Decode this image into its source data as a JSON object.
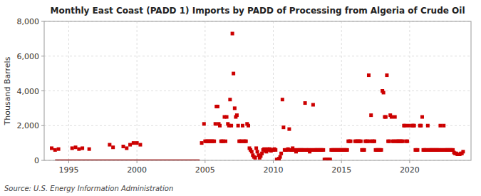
{
  "chart_data": {
    "type": "scatter",
    "title": "Monthly East Coast (PADD 1) Imports by PADD of Processing from Algeria of Crude Oil",
    "y_label": "Thousand Barrels",
    "annotations": [
      "Source: U.S. Energy Information Administration"
    ],
    "xlim": [
      1993.2,
      2024.5
    ],
    "xticks": [
      1995,
      2000,
      2005,
      2010,
      2015,
      2020
    ],
    "ylim": [
      0,
      8000
    ],
    "yticks": [
      0,
      {
        "value": 2000,
        "label": "2,000"
      },
      {
        "value": 4000,
        "label": "4,000"
      },
      {
        "value": 6000,
        "label": "6,000"
      },
      {
        "value": 8000,
        "label": "8,000"
      }
    ],
    "grid": true,
    "series": [
      {
        "type": "line",
        "color": "#8b0000",
        "x": [
          1994.0,
          2004.6
        ],
        "values": [
          0,
          0
        ]
      },
      {
        "type": "scatter",
        "color": "#cc0000",
        "marker": "square",
        "x": [
          1993.75,
          1994.0,
          1994.25,
          1995.25,
          1995.5,
          1995.75,
          1996.0,
          1996.5,
          1998.0,
          1998.25,
          1999.0,
          1999.25,
          1999.5,
          1999.75,
          2000.0,
          2000.25,
          2004.75,
          2004.92,
          2005.0,
          2005.08,
          2005.17,
          2005.25,
          2005.33,
          2005.42,
          2005.5,
          2005.58,
          2005.67,
          2005.75,
          2005.83,
          2005.92,
          2006.0,
          2006.08,
          2006.17,
          2006.25,
          2006.33,
          2006.42,
          2006.5,
          2006.58,
          2006.67,
          2006.75,
          2006.83,
          2006.92,
          2007.0,
          2007.08,
          2007.17,
          2007.25,
          2007.33,
          2007.42,
          2007.5,
          2007.58,
          2007.67,
          2007.75,
          2007.83,
          2007.92,
          2008.0,
          2008.08,
          2008.17,
          2008.25,
          2008.33,
          2008.42,
          2008.5,
          2008.58,
          2008.67,
          2008.75,
          2008.83,
          2008.92,
          2009.0,
          2009.08,
          2009.17,
          2009.25,
          2009.33,
          2009.42,
          2009.5,
          2009.58,
          2009.67,
          2009.75,
          2009.83,
          2009.92,
          2010.0,
          2010.08,
          2010.17,
          2010.25,
          2010.33,
          2010.42,
          2010.5,
          2010.58,
          2010.67,
          2010.75,
          2010.83,
          2010.92,
          2011.0,
          2011.08,
          2011.17,
          2011.25,
          2011.33,
          2011.42,
          2011.5,
          2011.58,
          2011.67,
          2011.75,
          2011.83,
          2011.92,
          2012.0,
          2012.08,
          2012.17,
          2012.25,
          2012.33,
          2012.42,
          2012.5,
          2012.58,
          2012.67,
          2012.75,
          2012.83,
          2012.92,
          2013.0,
          2013.08,
          2013.17,
          2013.25,
          2013.33,
          2013.42,
          2013.5,
          2013.58,
          2013.67,
          2013.75,
          2013.83,
          2013.92,
          2014.0,
          2014.08,
          2014.17,
          2014.25,
          2014.33,
          2014.42,
          2014.5,
          2014.58,
          2014.67,
          2014.75,
          2014.83,
          2014.92,
          2015.0,
          2015.08,
          2015.17,
          2015.25,
          2015.33,
          2015.42,
          2015.5,
          2015.58,
          2015.67,
          2016.0,
          2016.08,
          2016.17,
          2016.25,
          2016.33,
          2016.42,
          2016.5,
          2016.58,
          2016.67,
          2016.75,
          2016.83,
          2016.92,
          2017.0,
          2017.08,
          2017.17,
          2017.25,
          2017.33,
          2017.42,
          2017.5,
          2017.58,
          2017.67,
          2017.75,
          2017.83,
          2017.92,
          2018.0,
          2018.08,
          2018.17,
          2018.25,
          2018.33,
          2018.42,
          2018.5,
          2018.58,
          2018.67,
          2018.75,
          2018.83,
          2018.92,
          2019.0,
          2019.08,
          2019.17,
          2019.25,
          2019.33,
          2019.42,
          2019.5,
          2019.58,
          2019.67,
          2019.75,
          2019.83,
          2019.92,
          2020.17,
          2020.25,
          2020.33,
          2020.42,
          2020.5,
          2020.58,
          2020.75,
          2020.83,
          2020.92,
          2021.0,
          2021.08,
          2021.17,
          2021.25,
          2021.33,
          2021.42,
          2021.5,
          2021.58,
          2021.67,
          2021.75,
          2021.83,
          2021.92,
          2022.0,
          2022.08,
          2022.17,
          2022.25,
          2022.33,
          2022.42,
          2022.5,
          2022.58,
          2022.67,
          2022.75,
          2022.83,
          2022.92,
          2023.0,
          2023.08,
          2023.17,
          2023.25,
          2023.33,
          2023.42,
          2023.5,
          2023.58,
          2023.67,
          2023.75,
          2023.83,
          2023.92
        ],
        "values": [
          700,
          600,
          650,
          700,
          750,
          650,
          700,
          650,
          900,
          750,
          800,
          700,
          900,
          1000,
          1000,
          900,
          1000,
          2100,
          1100,
          1100,
          1100,
          1100,
          1100,
          1100,
          1100,
          1100,
          1100,
          2100,
          3100,
          3100,
          2100,
          2000,
          1100,
          1100,
          1100,
          2500,
          1100,
          2500,
          2100,
          2000,
          3500,
          2000,
          7300,
          5000,
          3000,
          2500,
          2600,
          2000,
          1100,
          1100,
          1100,
          2000,
          1100,
          1100,
          1100,
          2100,
          2000,
          700,
          600,
          500,
          300,
          200,
          150,
          700,
          500,
          300,
          150,
          250,
          400,
          600,
          650,
          550,
          500,
          650,
          600,
          650,
          550,
          600,
          600,
          650,
          600,
          50,
          50,
          100,
          200,
          400,
          3500,
          1900,
          600,
          600,
          600,
          650,
          1800,
          600,
          600,
          700,
          600,
          600,
          500,
          600,
          600,
          600,
          600,
          600,
          600,
          600,
          3300,
          600,
          600,
          600,
          500,
          600,
          600,
          3200,
          600,
          600,
          600,
          600,
          600,
          600,
          600,
          600,
          600,
          50,
          50,
          50,
          50,
          50,
          50,
          600,
          600,
          600,
          600,
          600,
          600,
          600,
          600,
          600,
          600,
          600,
          600,
          600,
          600,
          600,
          1100,
          1100,
          1100,
          1100,
          1100,
          1100,
          1100,
          1100,
          1100,
          600,
          600,
          600,
          1100,
          1100,
          1100,
          4900,
          1100,
          2600,
          1100,
          1100,
          1100,
          600,
          600,
          600,
          600,
          600,
          600,
          4000,
          3900,
          2500,
          2500,
          4900,
          1100,
          1100,
          2600,
          2500,
          1100,
          1100,
          2500,
          1100,
          1100,
          1100,
          1100,
          1100,
          1100,
          1100,
          2000,
          2000,
          1100,
          1100,
          2000,
          2000,
          2000,
          2000,
          600,
          600,
          600,
          2000,
          2000,
          2500,
          600,
          600,
          600,
          600,
          2000,
          600,
          600,
          600,
          600,
          600,
          600,
          600,
          600,
          600,
          600,
          2000,
          600,
          600,
          2000,
          600,
          600,
          600,
          600,
          600,
          600,
          600,
          600,
          450,
          400,
          400,
          350,
          350,
          350,
          400,
          400,
          500
        ]
      }
    ]
  }
}
